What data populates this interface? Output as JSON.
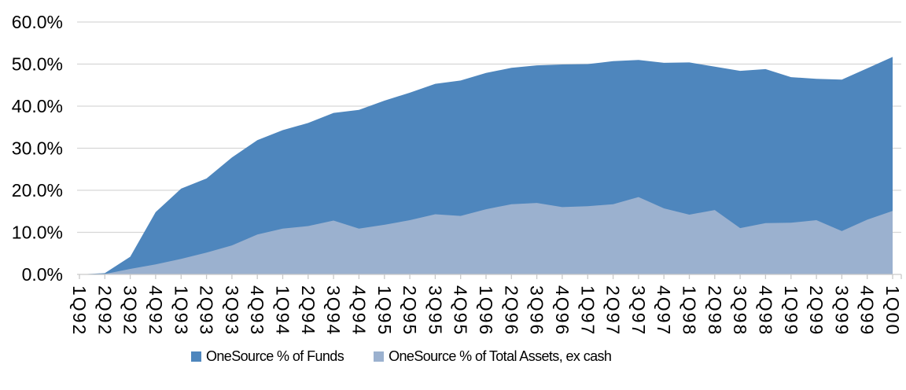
{
  "chart_data": {
    "type": "area",
    "title": "",
    "categories": [
      "1Q92",
      "2Q92",
      "3Q92",
      "4Q92",
      "1Q93",
      "2Q93",
      "3Q93",
      "4Q93",
      "1Q94",
      "2Q94",
      "3Q94",
      "4Q94",
      "1Q95",
      "2Q95",
      "3Q95",
      "4Q95",
      "1Q96",
      "2Q96",
      "3Q96",
      "4Q96",
      "1Q97",
      "2Q97",
      "3Q97",
      "4Q97",
      "1Q98",
      "2Q98",
      "3Q98",
      "4Q98",
      "1Q99",
      "2Q99",
      "3Q99",
      "4Q99",
      "1Q00"
    ],
    "series": [
      {
        "key": "funds",
        "name": "OneSource % of Funds",
        "color": "#4E86BD",
        "values": [
          0.0,
          0.3,
          4.2,
          14.8,
          20.4,
          22.8,
          27.8,
          31.9,
          34.3,
          36.0,
          38.4,
          39.1,
          41.3,
          43.2,
          45.3,
          46.1,
          47.9,
          49.1,
          49.7,
          49.9,
          50.0,
          50.7,
          51.0,
          50.3,
          50.4,
          49.4,
          48.4,
          48.8,
          46.9,
          46.5,
          46.3,
          49.0,
          51.7
        ]
      },
      {
        "key": "assets_ex_cash",
        "name": "OneSource % of Total Assets, ex cash",
        "color": "#9BB1CF",
        "values": [
          0.0,
          0.1,
          1.3,
          2.4,
          3.7,
          5.2,
          6.9,
          9.5,
          10.9,
          11.5,
          12.8,
          10.9,
          11.8,
          12.9,
          14.3,
          13.9,
          15.5,
          16.7,
          17.0,
          16.0,
          16.2,
          16.7,
          18.4,
          15.7,
          14.2,
          15.3,
          11.0,
          12.2,
          12.3,
          12.9,
          10.3,
          13.0,
          15.1
        ]
      }
    ],
    "xlabel": "",
    "ylabel": "",
    "ylim": [
      0,
      60
    ],
    "ytick_step": 10,
    "ytick_labels": [
      "0.0%",
      "10.0%",
      "20.0%",
      "30.0%",
      "40.0%",
      "50.0%",
      "60.0%"
    ],
    "grid": "horizontal",
    "gridline_color": "#D6D6D6",
    "axis_line_color": "#C9C9C9",
    "tick_label_color": "#000000",
    "legend_position": "bottom",
    "x_labels_rotation_deg": 90
  }
}
